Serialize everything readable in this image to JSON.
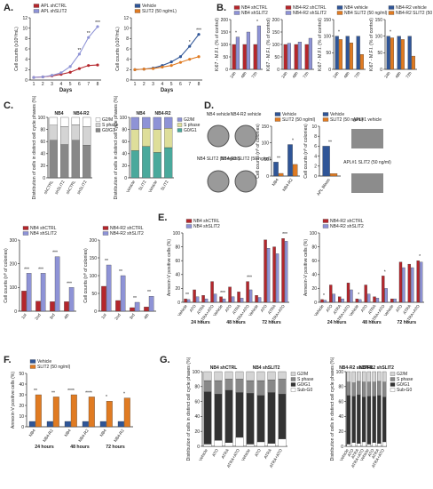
{
  "colors": {
    "blue": "#2f5597",
    "lavender": "#8e93d6",
    "red": "#b5262c",
    "orange": "#e07b22",
    "grey": "#888888",
    "lightgrey": "#d4d4d4",
    "olive": "#dede9a",
    "teal": "#4aa99c",
    "dark": "#333333"
  },
  "panel_letters": [
    "A.",
    "B.",
    "C.",
    "D.",
    "E.",
    "F.",
    "G."
  ],
  "chart_data": [
    {
      "id": "A1",
      "panel": "A.",
      "type": "line",
      "x": [
        1,
        2,
        3,
        4,
        5,
        6,
        7,
        8
      ],
      "xlabel": "Days",
      "ylabel": "Cell counts (x10⁶/mL)",
      "ylim": [
        0,
        12
      ],
      "ytick": [
        0,
        2,
        4,
        6,
        8,
        10,
        12
      ],
      "xtick": [
        1,
        2,
        3,
        4,
        5,
        6,
        7,
        8
      ],
      "series": [
        {
          "name": "APL shCTRL",
          "color": "red",
          "values": [
            0.5,
            0.6,
            0.8,
            1.1,
            1.5,
            2.2,
            2.8,
            2.9
          ]
        },
        {
          "name": "APL shSLIT2",
          "color": "lavender",
          "values": [
            0.5,
            0.6,
            0.9,
            1.4,
            2.6,
            5.0,
            8.2,
            10.3
          ]
        }
      ],
      "annotations": [
        "**",
        "**",
        "***"
      ]
    },
    {
      "id": "A2",
      "panel": "",
      "type": "line",
      "x": [
        1,
        2,
        3,
        4,
        5,
        6,
        7,
        8
      ],
      "xlabel": "Days",
      "ylabel": "Cell counts (x10⁶/mL)",
      "ylim": [
        0,
        12
      ],
      "ytick": [
        0,
        2,
        4,
        6,
        8,
        10,
        12
      ],
      "xtick": [
        1,
        2,
        3,
        4,
        5,
        6,
        7,
        8
      ],
      "series": [
        {
          "name": "Vehicle",
          "color": "blue",
          "values": [
            2.0,
            2.1,
            2.3,
            2.8,
            3.5,
            4.5,
            6.5,
            8.8
          ]
        },
        {
          "name": "SLIT2 (50 ng/mL)",
          "color": "orange",
          "values": [
            2.0,
            2.1,
            2.2,
            2.5,
            2.8,
            3.4,
            4.0,
            4.5
          ]
        }
      ],
      "annotations": [
        "*",
        "***"
      ]
    },
    {
      "id": "B1",
      "panel": "B.",
      "type": "bar",
      "categories": [
        "24h",
        "48h",
        "72h"
      ],
      "ylabel": "Ki67 - M.F.I. (% of control)",
      "ylim": [
        0,
        200
      ],
      "ytick": [
        0,
        50,
        100,
        150,
        200
      ],
      "series": [
        {
          "name": "NB4 shCTRL",
          "color": "red",
          "values": [
            100,
            100,
            100
          ]
        },
        {
          "name": "NB4 shSLIT2",
          "color": "lavender",
          "values": [
            130,
            150,
            175
          ]
        }
      ],
      "annotations": [
        "*",
        "*"
      ]
    },
    {
      "id": "B2",
      "panel": "",
      "type": "bar",
      "categories": [
        "24h",
        "48h",
        "72h"
      ],
      "ylabel": "Ki67 - M.F.I. (% of control)",
      "ylim": [
        0,
        200
      ],
      "ytick": [
        0,
        50,
        100,
        150,
        200
      ],
      "series": [
        {
          "name": "NB4-R2 shCTRL",
          "color": "red",
          "values": [
            100,
            100,
            100
          ]
        },
        {
          "name": "NB4-R2 shSLIT2",
          "color": "lavender",
          "values": [
            105,
            110,
            125
          ]
        }
      ],
      "annotations": []
    },
    {
      "id": "B3",
      "panel": "",
      "type": "bar",
      "categories": [
        "24h",
        "48h",
        "72h"
      ],
      "ylabel": "Ki67 - M.F.I. (% of control)",
      "ylim": [
        0,
        150
      ],
      "ytick": [
        0,
        50,
        100,
        150
      ],
      "series": [
        {
          "name": "NB4 vehicle",
          "color": "blue",
          "values": [
            100,
            100,
            100
          ]
        },
        {
          "name": "NB4 SLIT2 (50 ng/ml)",
          "color": "orange",
          "values": [
            90,
            80,
            45
          ]
        }
      ],
      "annotations": [
        "*"
      ]
    },
    {
      "id": "B4",
      "panel": "",
      "type": "bar",
      "categories": [
        "24h",
        "48h",
        "72h"
      ],
      "ylabel": "Ki67 - M.F.I. (% of control)",
      "ylim": [
        0,
        150
      ],
      "ytick": [
        0,
        50,
        100,
        150
      ],
      "series": [
        {
          "name": "NB4-R2 vehicle",
          "color": "blue",
          "values": [
            100,
            100,
            100
          ]
        },
        {
          "name": "NB4-R2 SLIT2 (50 ng/ml)",
          "color": "orange",
          "values": [
            95,
            90,
            40
          ]
        }
      ],
      "annotations": [
        "*"
      ]
    },
    {
      "id": "C1",
      "panel": "C.",
      "type": "bar",
      "groups": [
        "NB4",
        "NB4-R2"
      ],
      "categories": [
        "shCTRL",
        "shSLIT2",
        "shCTRL",
        "shSLIT2"
      ],
      "ylabel": "Distribution of cells in distinct cell cycle phases (%)",
      "ylim": [
        0,
        100
      ],
      "ytick": [
        0,
        20,
        40,
        60,
        80,
        100
      ],
      "series": [
        {
          "name": "G0/G1",
          "color": "grey",
          "values": [
            62,
            55,
            62,
            54
          ]
        },
        {
          "name": "S phase",
          "color": "lightgrey",
          "values": [
            25,
            30,
            26,
            31
          ]
        },
        {
          "name": "G2/M",
          "color": "white",
          "values": [
            13,
            15,
            12,
            15
          ]
        }
      ]
    },
    {
      "id": "C2",
      "panel": "",
      "type": "bar",
      "groups": [
        "NB4",
        "NB4-R2"
      ],
      "categories": [
        "Vehicle",
        "SLIT2",
        "Vehicle",
        "SLIT2"
      ],
      "ylabel": "Distribution of cells in distinct cell cycle phases (%)",
      "ylim": [
        0,
        100
      ],
      "ytick": [
        0,
        20,
        40,
        60,
        80,
        100
      ],
      "series": [
        {
          "name": "G0/G1",
          "color": "teal",
          "values": [
            45,
            52,
            42,
            50
          ]
        },
        {
          "name": "S phase",
          "color": "olive",
          "values": [
            35,
            30,
            38,
            32
          ]
        },
        {
          "name": "G2/M",
          "color": "lavender",
          "values": [
            20,
            18,
            20,
            18
          ]
        }
      ]
    },
    {
      "id": "D1",
      "panel": "D.",
      "type": "bar",
      "categories": [
        "NB4",
        "NB4-R2"
      ],
      "ylabel": "Cell counts (nº of colonies)",
      "ylim": [
        0,
        150
      ],
      "ytick": [
        0,
        50,
        100,
        150
      ],
      "series": [
        {
          "name": "Vehicle",
          "color": "blue",
          "values": [
            42,
            95
          ]
        },
        {
          "name": "SLIT2 (50 ng/ml)",
          "color": "orange",
          "values": [
            8,
            35
          ]
        }
      ],
      "annotations": [
        "**",
        "*"
      ]
    },
    {
      "id": "D2",
      "panel": "",
      "type": "bar",
      "categories": [
        "APL Blasts"
      ],
      "ylabel": "Cell counts (nº of colonies)",
      "ylim": [
        0,
        10
      ],
      "ytick": [
        0,
        2,
        4,
        6,
        8,
        10
      ],
      "series": [
        {
          "name": "Vehicle",
          "color": "blue",
          "values": [
            6
          ]
        },
        {
          "name": "SLIT2 (50 ng/ml)",
          "color": "orange",
          "values": [
            0.5
          ]
        }
      ],
      "annotations": [
        "**"
      ]
    },
    {
      "id": "CC1",
      "panel": "",
      "type": "bar",
      "categories": [
        "1st",
        "2nd",
        "3rd",
        "4th"
      ],
      "ylabel": "Cell counts (nº of colonies)",
      "ylim": [
        0,
        300
      ],
      "ytick": [
        0,
        100,
        200,
        300
      ],
      "series": [
        {
          "name": "NB4 shCTRL",
          "color": "red",
          "values": [
            85,
            42,
            40,
            40
          ]
        },
        {
          "name": "NB4 shSLIT2",
          "color": "lavender",
          "values": [
            160,
            160,
            230,
            100
          ]
        }
      ],
      "annotations": [
        "***",
        "***",
        "***",
        "***"
      ]
    },
    {
      "id": "CC2",
      "panel": "",
      "type": "bar",
      "categories": [
        "1st",
        "2nd",
        "3rd",
        "4th"
      ],
      "ylabel": "Cell counts (nº of colonies)",
      "ylim": [
        0,
        200
      ],
      "ytick": [
        0,
        50,
        100,
        150,
        200
      ],
      "series": [
        {
          "name": "NB4-R2 shCTRL",
          "color": "red",
          "values": [
            70,
            30,
            10,
            12
          ]
        },
        {
          "name": "NB4-R2 shSLIT2",
          "color": "lavender",
          "values": [
            130,
            100,
            25,
            42
          ]
        }
      ],
      "annotations": [
        "**",
        "**",
        "**",
        "**"
      ]
    },
    {
      "id": "E1",
      "panel": "E.",
      "type": "bar",
      "groups": [
        "24 hours",
        "48 hours",
        "72 hours"
      ],
      "categories": [
        "Vehicle",
        "ATO",
        "ATRA",
        "ATRA+ATO",
        "Vehicle",
        "ATO",
        "ATRA",
        "ATRA+ATO",
        "Vehicle",
        "ATO",
        "ATRA",
        "ATRA+ATO"
      ],
      "ylabel": "Annexin-V positive cells (%)",
      "ylim": [
        0,
        100
      ],
      "ytick": [
        0,
        20,
        40,
        60,
        80,
        100
      ],
      "series": [
        {
          "name": "NB4 shCTRL",
          "color": "red",
          "values": [
            5,
            18,
            10,
            30,
            8,
            22,
            15,
            30,
            10,
            90,
            80,
            92
          ]
        },
        {
          "name": "NB4 shSLIT2",
          "color": "lavender",
          "values": [
            4,
            8,
            5,
            12,
            5,
            8,
            6,
            18,
            7,
            78,
            70,
            88
          ]
        }
      ],
      "annotations": [
        "**",
        "***",
        "***",
        "***"
      ]
    },
    {
      "id": "E2",
      "panel": "",
      "type": "bar",
      "groups": [
        "24 hours",
        "48 hours",
        "72 hours"
      ],
      "categories": [
        "Vehicle",
        "ATO",
        "ATRA",
        "ATRA+ATO",
        "Vehicle",
        "ATO",
        "ATRA",
        "ATRA+ATO",
        "Vehicle",
        "ATO",
        "ATRA",
        "ATRA+ATO"
      ],
      "ylabel": "Annexin-V positive cells (%)",
      "ylim": [
        0,
        100
      ],
      "ytick": [
        0,
        20,
        40,
        60,
        80,
        100
      ],
      "series": [
        {
          "name": "NB4-R2 shCTRL",
          "color": "red",
          "values": [
            4,
            25,
            8,
            28,
            5,
            25,
            8,
            38,
            5,
            58,
            55,
            60
          ]
        },
        {
          "name": "NB4-R2 shSLIT2",
          "color": "lavender",
          "values": [
            3,
            12,
            5,
            18,
            4,
            12,
            6,
            20,
            5,
            50,
            50,
            58
          ]
        }
      ],
      "annotations": [
        "*",
        "*",
        "*",
        "*"
      ]
    },
    {
      "id": "F1",
      "panel": "F.",
      "type": "bar",
      "groups": [
        "24 hours",
        "48 hours",
        "72 hours"
      ],
      "categories": [
        "NB4",
        "NB4-R2",
        "NB4",
        "NB4-R2",
        "NB4",
        "NB4-R2"
      ],
      "ylabel": "Annexin-V positive cells (%)",
      "ylim": [
        0,
        50
      ],
      "ytick": [
        0,
        10,
        20,
        30,
        40,
        50
      ],
      "series": [
        {
          "name": "Vehicle",
          "color": "blue",
          "values": [
            5,
            5,
            5,
            5,
            5,
            5
          ]
        },
        {
          "name": "SLIT2 (50 ng/ml)",
          "color": "orange",
          "values": [
            30,
            28,
            30,
            28,
            24,
            27
          ]
        }
      ],
      "annotations": [
        "**",
        "**",
        "****",
        "****",
        "*",
        "*"
      ]
    },
    {
      "id": "G1",
      "panel": "G.",
      "type": "bar",
      "groups": [
        "NB4 shCTRL",
        "NB4 shSLIT2"
      ],
      "categories": [
        "Vehicle",
        "ATO",
        "ATRA",
        "ATRA+ATO",
        "Vehicle",
        "ATO",
        "ATRA",
        "ATRA+ATO"
      ],
      "ylabel": "Distribution of cells in distinct cell cycle phases (%)",
      "ylim": [
        0,
        100
      ],
      "ytick": [
        0,
        20,
        40,
        60,
        80,
        100
      ],
      "series": [
        {
          "name": "Sub-G0",
          "color": "white",
          "values": [
            3,
            8,
            5,
            12,
            3,
            6,
            4,
            10
          ]
        },
        {
          "name": "G0/G1",
          "color": "dark",
          "values": [
            70,
            62,
            70,
            60,
            68,
            62,
            68,
            60
          ]
        },
        {
          "name": "S phase",
          "color": "grey",
          "values": [
            15,
            18,
            15,
            18,
            17,
            20,
            17,
            20
          ]
        },
        {
          "name": "G2/M",
          "color": "lightgrey",
          "values": [
            12,
            12,
            10,
            10,
            12,
            12,
            11,
            10
          ]
        }
      ]
    },
    {
      "id": "G2",
      "panel": "",
      "type": "bar",
      "groups": [
        "NB4-R2 shCTRL",
        "NB4-R2 shSLIT2"
      ],
      "categories": [
        "Vehicle",
        "ATO",
        "ATRA",
        "ATRA+ATO",
        "Vehicle",
        "ATO",
        "ATRA",
        "ATRA+ATO"
      ],
      "ylabel": "Distribution of cells in distinct cell cycle phases (%)",
      "ylim": [
        0,
        100
      ],
      "ytick": [
        0,
        20,
        40,
        60,
        80,
        100
      ],
      "series": [
        {
          "name": "Sub-G0",
          "color": "white",
          "values": [
            3,
            5,
            4,
            6,
            3,
            5,
            4,
            6
          ]
        },
        {
          "name": "G0/G1",
          "color": "dark",
          "values": [
            65,
            62,
            65,
            60,
            64,
            62,
            64,
            60
          ]
        },
        {
          "name": "S phase",
          "color": "grey",
          "values": [
            18,
            18,
            18,
            20,
            19,
            19,
            19,
            20
          ]
        },
        {
          "name": "G2/M",
          "color": "lightgrey",
          "values": [
            14,
            15,
            13,
            14,
            14,
            14,
            13,
            14
          ]
        }
      ]
    }
  ],
  "colony_images": {
    "D_labels": [
      "NB4 vehicle",
      "NB4-R2 vehicle",
      "NB4 SLIT2 (50 ng/ml)",
      "NB4-R2 SLIT2 (50 ng/ml)"
    ],
    "APL_labels": [
      "APL#1 vehicle",
      "APL#1 SLIT2 (50 ng/ml)"
    ]
  }
}
